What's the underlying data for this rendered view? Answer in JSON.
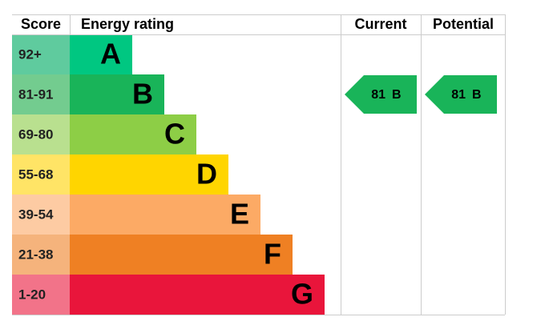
{
  "header": {
    "score": "Score",
    "rating": "Energy rating",
    "current": "Current",
    "potential": "Potential"
  },
  "bands": [
    {
      "score": "92+",
      "letter": "A",
      "color": "#00c781",
      "score_color": "#5fcb9e"
    },
    {
      "score": "81-91",
      "letter": "B",
      "color": "#19b459",
      "score_color": "#73cc8f"
    },
    {
      "score": "69-80",
      "letter": "C",
      "color": "#8dce46",
      "score_color": "#b9e08f"
    },
    {
      "score": "55-68",
      "letter": "D",
      "color": "#ffd500",
      "score_color": "#ffe466"
    },
    {
      "score": "39-54",
      "letter": "E",
      "color": "#fcaa65",
      "score_color": "#fdcba3"
    },
    {
      "score": "21-38",
      "letter": "F",
      "color": "#ef8023",
      "score_color": "#f5b37c"
    },
    {
      "score": "1-20",
      "letter": "G",
      "color": "#e9153b",
      "score_color": "#f27389"
    }
  ],
  "current": {
    "score": 81,
    "letter": "B"
  },
  "potential": {
    "score": 81,
    "letter": "B"
  }
}
